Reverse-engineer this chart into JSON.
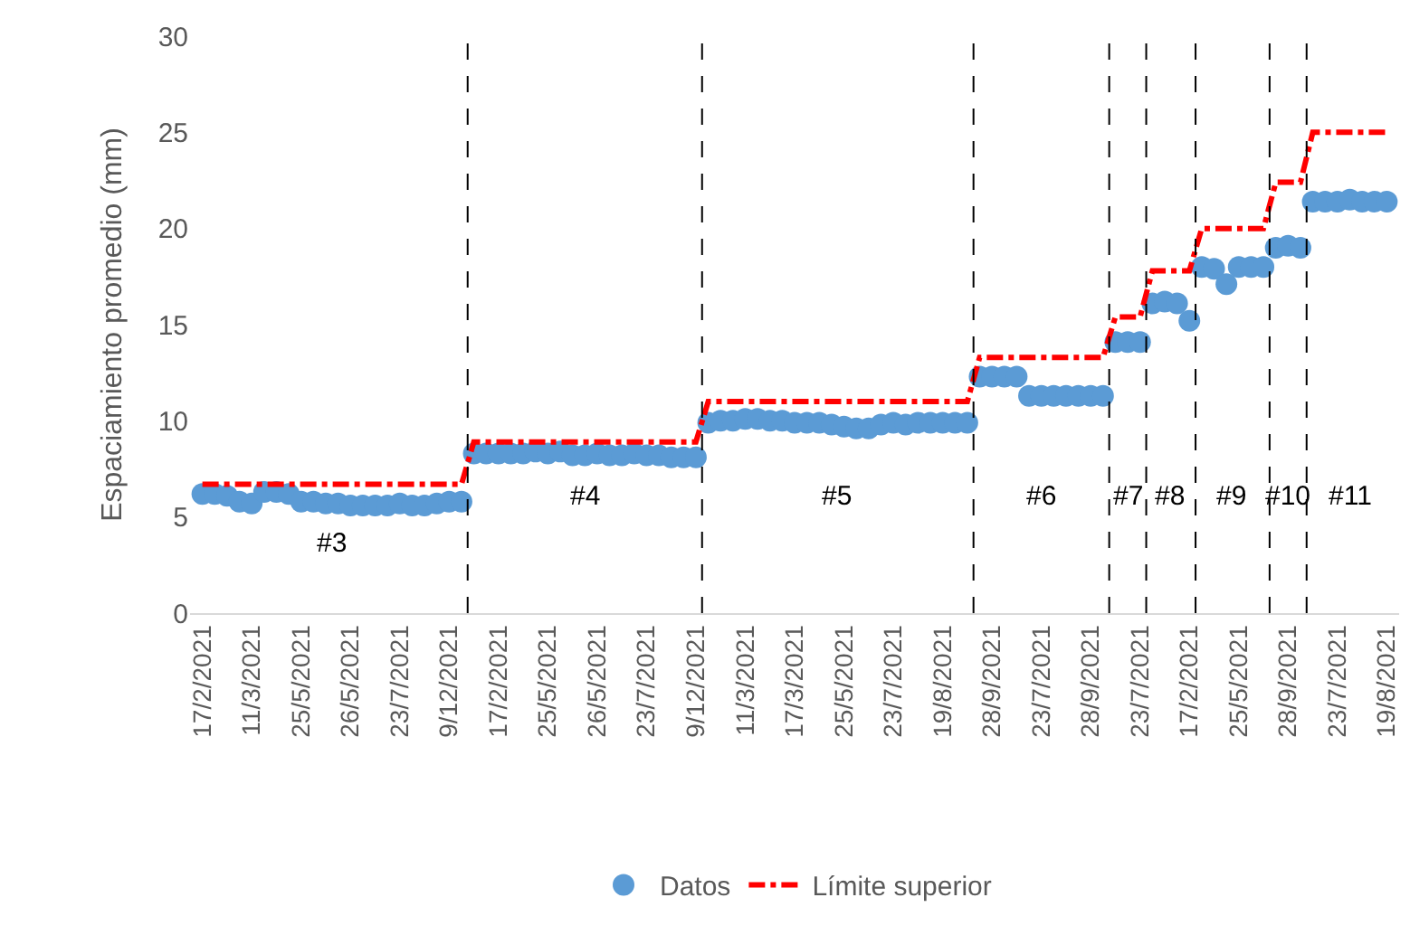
{
  "chart_data": {
    "type": "scatter",
    "ylabel": "Espaciamiento promedio (mm)",
    "categories": [
      "17/2/2021",
      null,
      null,
      null,
      "11/3/2021",
      null,
      null,
      null,
      "25/5/2021",
      null,
      null,
      null,
      "26/5/2021",
      null,
      null,
      null,
      "23/7/2021",
      null,
      null,
      null,
      "9/12/2021",
      null,
      null,
      null,
      "17/2/2021",
      null,
      null,
      null,
      "25/5/2021",
      null,
      null,
      null,
      "26/5/2021",
      null,
      null,
      null,
      "23/7/2021",
      null,
      null,
      null,
      "9/12/2021",
      null,
      null,
      null,
      "11/3/2021",
      null,
      null,
      null,
      "17/3/2021",
      null,
      null,
      null,
      "25/5/2021",
      null,
      null,
      null,
      "23/7/2021",
      null,
      null,
      null,
      "19/8/2021",
      null,
      null,
      null,
      "28/9/2021",
      null,
      null,
      null,
      "23/7/2021",
      null,
      null,
      null,
      "28/9/2021",
      null,
      null,
      null,
      "23/7/2021",
      null,
      null,
      null,
      "17/2/2021",
      null,
      null,
      null,
      "25/5/2021",
      null,
      null,
      null,
      "28/9/2021",
      null,
      null,
      null,
      "23/7/2021",
      null,
      null,
      null,
      "19/8/2021"
    ],
    "series": [
      {
        "name": "Datos",
        "color": "#5b9bd5",
        "marker": "circle",
        "values": [
          6.2,
          6.2,
          6.1,
          5.8,
          5.7,
          6.3,
          6.3,
          6.2,
          5.8,
          5.8,
          5.7,
          5.7,
          5.6,
          5.6,
          5.6,
          5.6,
          5.7,
          5.6,
          5.6,
          5.7,
          5.8,
          5.8,
          8.3,
          8.3,
          8.3,
          8.3,
          8.3,
          8.4,
          8.3,
          8.4,
          8.2,
          8.2,
          8.3,
          8.2,
          8.2,
          8.3,
          8.2,
          8.2,
          8.1,
          8.1,
          8.1,
          9.9,
          10.0,
          10.0,
          10.1,
          10.1,
          10.0,
          10.0,
          9.9,
          9.9,
          9.9,
          9.8,
          9.7,
          9.6,
          9.6,
          9.8,
          9.9,
          9.8,
          9.9,
          9.9,
          9.9,
          9.9,
          9.9,
          12.3,
          12.3,
          12.3,
          12.3,
          11.3,
          11.3,
          11.3,
          11.3,
          11.3,
          11.3,
          11.3,
          14.1,
          14.1,
          14.1,
          16.1,
          16.2,
          16.1,
          15.2,
          18.0,
          17.9,
          17.1,
          18.0,
          18.0,
          18.0,
          19.0,
          19.1,
          19.0,
          21.4,
          21.4,
          21.4,
          21.5,
          21.4,
          21.4,
          21.4
        ]
      },
      {
        "name": "Límite superior",
        "type": "line",
        "color": "#ff0000",
        "line_style": "dashdot",
        "values": [
          6.7,
          6.7,
          6.7,
          6.7,
          6.7,
          6.7,
          6.7,
          6.7,
          6.7,
          6.7,
          6.7,
          6.7,
          6.7,
          6.7,
          6.7,
          6.7,
          6.7,
          6.7,
          6.7,
          6.7,
          6.7,
          6.7,
          8.9,
          8.9,
          8.9,
          8.9,
          8.9,
          8.9,
          8.9,
          8.9,
          8.9,
          8.9,
          8.9,
          8.9,
          8.9,
          8.9,
          8.9,
          8.9,
          8.9,
          8.9,
          8.9,
          11.0,
          11.0,
          11.0,
          11.0,
          11.0,
          11.0,
          11.0,
          11.0,
          11.0,
          11.0,
          11.0,
          11.0,
          11.0,
          11.0,
          11.0,
          11.0,
          11.0,
          11.0,
          11.0,
          11.0,
          11.0,
          11.0,
          13.3,
          13.3,
          13.3,
          13.3,
          13.3,
          13.3,
          13.3,
          13.3,
          13.3,
          13.3,
          13.3,
          15.4,
          15.4,
          15.4,
          17.8,
          17.8,
          17.8,
          17.8,
          20.0,
          20.0,
          20.0,
          20.0,
          20.0,
          20.0,
          22.4,
          22.4,
          22.4,
          25.0,
          25.0,
          25.0,
          25.0,
          25.0,
          25.0,
          25.0
        ]
      }
    ],
    "ylim": [
      0,
      30
    ],
    "yticks": [
      0,
      5,
      10,
      15,
      20,
      25,
      30
    ],
    "grid": false,
    "legend": "bottom",
    "annotations": [
      "#3",
      "#4",
      "#5",
      "#6",
      "#7",
      "#8",
      "#9",
      "#10",
      "#11"
    ]
  }
}
